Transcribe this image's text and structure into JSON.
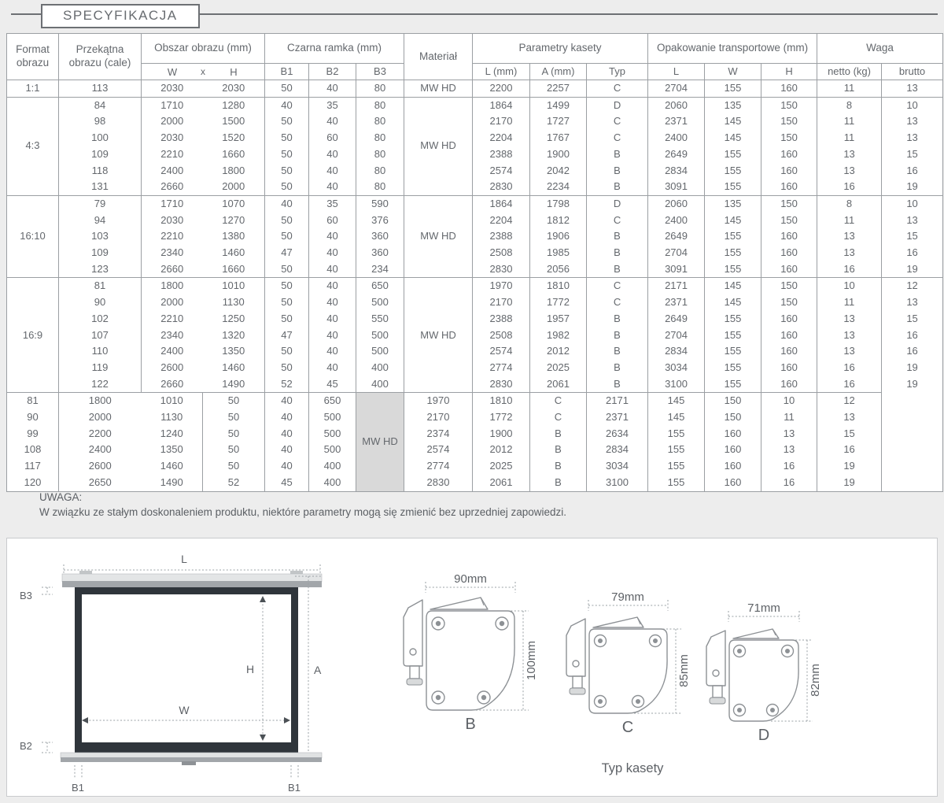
{
  "page": {
    "title": "SPECYFIKACJA"
  },
  "colors": {
    "page_bg": "#ededed",
    "table_border": "#9b9fa3",
    "text": "#61656a",
    "screen_frame": "#2f353b",
    "material_cell_bg": "#d9d9d9"
  },
  "table": {
    "header": {
      "format": "Format obrazu",
      "diagonal": "Przekątna obrazu (cale)",
      "area": "Obszar obrazu (mm)",
      "area_sub": [
        "W",
        "x",
        "H"
      ],
      "frame": "Czarna ramka (mm)",
      "frame_sub": [
        "B1",
        "B2",
        "B3"
      ],
      "material": "Materiał",
      "cassette": "Parametry kasety",
      "cassette_sub": [
        "L (mm)",
        "A (mm)",
        "Typ"
      ],
      "package": "Opakowanie transportowe (mm)",
      "package_sub": [
        "L",
        "W",
        "H"
      ],
      "weight": "Waga",
      "weight_sub": [
        "netto (kg)",
        "brutto"
      ]
    },
    "groups": [
      {
        "format": "1:1",
        "material": "MW HD",
        "material_gray": false,
        "format_spans_next": false,
        "rows": [
          [
            113,
            2030,
            2030,
            50,
            40,
            80,
            2200,
            2257,
            "C",
            2704,
            155,
            160,
            11,
            13
          ]
        ]
      },
      {
        "format": "4:3",
        "material": "MW HD",
        "material_gray": false,
        "format_spans_next": false,
        "rows": [
          [
            84,
            1710,
            1280,
            40,
            35,
            80,
            1864,
            1499,
            "D",
            2060,
            135,
            150,
            8,
            10
          ],
          [
            98,
            2000,
            1500,
            50,
            40,
            80,
            2170,
            1727,
            "C",
            2371,
            145,
            150,
            11,
            13
          ],
          [
            100,
            2030,
            1520,
            50,
            60,
            80,
            2204,
            1767,
            "C",
            2400,
            145,
            150,
            11,
            13
          ],
          [
            109,
            2210,
            1660,
            50,
            40,
            80,
            2388,
            1900,
            "B",
            2649,
            155,
            160,
            13,
            15
          ],
          [
            118,
            2400,
            1800,
            50,
            40,
            80,
            2574,
            2042,
            "B",
            2834,
            155,
            160,
            13,
            16
          ],
          [
            131,
            2660,
            2000,
            50,
            40,
            80,
            2830,
            2234,
            "B",
            3091,
            155,
            160,
            16,
            19
          ]
        ]
      },
      {
        "format": "16:10",
        "material": "MW HD",
        "material_gray": false,
        "format_spans_next": false,
        "rows": [
          [
            79,
            1710,
            1070,
            40,
            35,
            590,
            1864,
            1798,
            "D",
            2060,
            135,
            150,
            8,
            10
          ],
          [
            94,
            2030,
            1270,
            50,
            60,
            376,
            2204,
            1812,
            "C",
            2400,
            145,
            150,
            11,
            13
          ],
          [
            103,
            2210,
            1380,
            50,
            40,
            360,
            2388,
            1906,
            "B",
            2649,
            155,
            160,
            13,
            15
          ],
          [
            109,
            2340,
            1460,
            47,
            40,
            360,
            2508,
            1985,
            "B",
            2704,
            155,
            160,
            13,
            16
          ],
          [
            123,
            2660,
            1660,
            50,
            40,
            234,
            2830,
            2056,
            "B",
            3091,
            155,
            160,
            16,
            19
          ]
        ]
      },
      {
        "format": "16:9",
        "material": "MW HD",
        "material_gray": false,
        "format_spans_next": true,
        "rows": [
          [
            81,
            1800,
            1010,
            50,
            40,
            650,
            1970,
            1810,
            "C",
            2171,
            145,
            150,
            10,
            12
          ],
          [
            90,
            2000,
            1130,
            50,
            40,
            500,
            2170,
            1772,
            "C",
            2371,
            145,
            150,
            11,
            13
          ],
          [
            102,
            2210,
            1250,
            50,
            40,
            550,
            2388,
            1957,
            "B",
            2649,
            155,
            160,
            13,
            15
          ],
          [
            107,
            2340,
            1320,
            47,
            40,
            500,
            2508,
            1982,
            "B",
            2704,
            155,
            160,
            13,
            16
          ],
          [
            110,
            2400,
            1350,
            50,
            40,
            500,
            2574,
            2012,
            "B",
            2834,
            155,
            160,
            13,
            16
          ],
          [
            119,
            2600,
            1460,
            50,
            40,
            400,
            2774,
            2025,
            "B",
            3034,
            155,
            160,
            16,
            19
          ],
          [
            122,
            2660,
            1490,
            52,
            45,
            400,
            2830,
            2061,
            "B",
            3100,
            155,
            160,
            16,
            19
          ]
        ]
      },
      {
        "format": null,
        "material": "MW HD",
        "material_gray": true,
        "format_spans_next": false,
        "rows": [
          [
            81,
            1800,
            1010,
            50,
            40,
            650,
            1970,
            1810,
            "C",
            2171,
            145,
            150,
            10,
            12
          ],
          [
            90,
            2000,
            1130,
            50,
            40,
            500,
            2170,
            1772,
            "C",
            2371,
            145,
            150,
            11,
            13
          ],
          [
            99,
            2200,
            1240,
            50,
            40,
            500,
            2374,
            1900,
            "B",
            2634,
            155,
            160,
            13,
            15
          ],
          [
            108,
            2400,
            1350,
            50,
            40,
            500,
            2574,
            2012,
            "B",
            2834,
            155,
            160,
            13,
            16
          ],
          [
            117,
            2600,
            1460,
            50,
            40,
            400,
            2774,
            2025,
            "B",
            3034,
            155,
            160,
            16,
            19
          ],
          [
            120,
            2650,
            1490,
            52,
            45,
            400,
            2830,
            2061,
            "B",
            3100,
            155,
            160,
            16,
            19
          ]
        ]
      }
    ]
  },
  "note": {
    "title": "UWAGA:",
    "body": "W związku ze stałym doskonaleniem produktu, niektóre parametry mogą się zmienić bez uprzedniej zapowiedzi."
  },
  "diagram": {
    "screen": {
      "l_label": "L",
      "a_label": "A",
      "h_label": "H",
      "w_label": "W",
      "b1_left_label": "B1",
      "b1_right_label": "B1",
      "b2_label": "B2",
      "b3_label": "B3"
    },
    "cassettes": [
      {
        "type": "B",
        "width_label": "90mm",
        "height_label": "100mm"
      },
      {
        "type": "C",
        "width_label": "79mm",
        "height_label": "85mm"
      },
      {
        "type": "D",
        "width_label": "71mm",
        "height_label": "82mm"
      }
    ],
    "caption": "Typ kasety"
  }
}
